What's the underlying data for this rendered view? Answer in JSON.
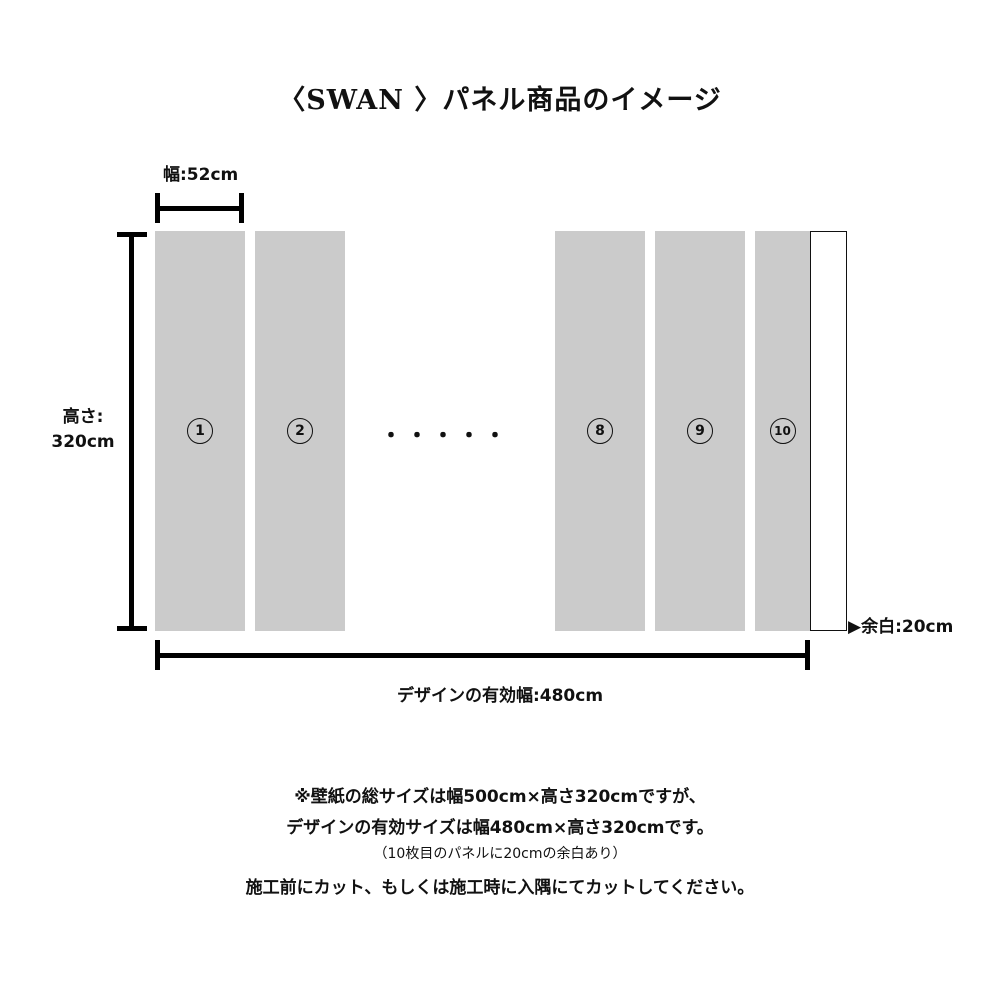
{
  "title": "〈SWAN 〉パネル商品のイメージ",
  "width_label": "幅:52cm",
  "height_label": [
    "高さ:",
    "320cm"
  ],
  "panels": [
    "1",
    "2",
    "8",
    "9",
    "10"
  ],
  "ellipsis": "・・・・・",
  "margin_label": "▶余白:20cm",
  "effective_width_label": "デザインの有効幅:480cm",
  "notes": [
    "※壁紙の総サイズは幅500cm×高さ320cmですが、",
    "デザインの有効サイズは幅480cm×高さ320cmです。",
    "（10枚目のパネルに20cmの余白あり）",
    "施工前にカット、もしくは施工時に入隅にてカットしてください。"
  ],
  "colors": {
    "panel": "#cbcbcb",
    "line": "#000000"
  }
}
